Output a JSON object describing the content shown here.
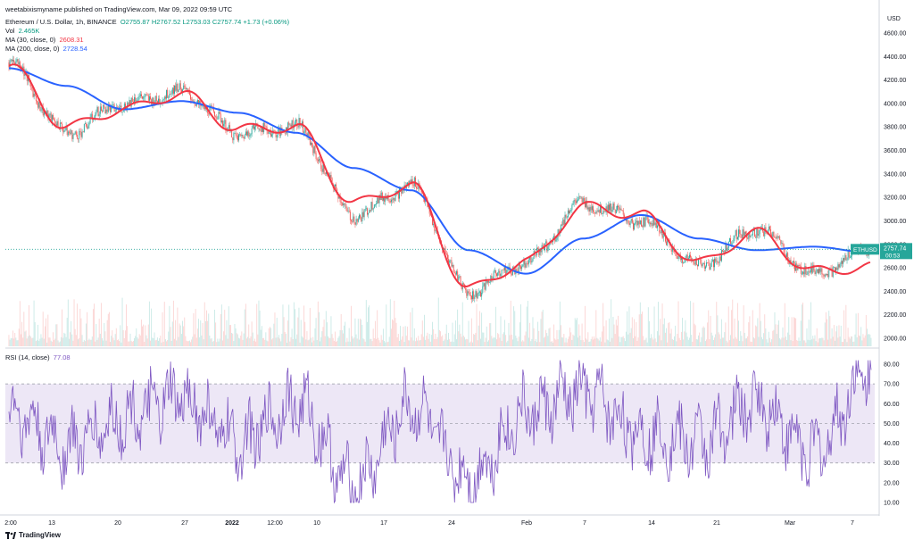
{
  "header": {
    "published_by": "weetabixismyname published on TradingView.com, Mar 09, 2022 09:59 UTC",
    "symbol": "Ethereum / U.S. Dollar, 1h, BINANCE",
    "ohlc": "O2755.87  H2767.52  L2753.03  C2757.74  +1.73 (+0.06%)",
    "vol_label": "Vol",
    "vol_value": "2.465K",
    "ma30_label": "MA (30, close, 0)",
    "ma30_value": "2608.31",
    "ma200_label": "MA (200, close, 0)",
    "ma200_value": "2728.54",
    "rsi_label": "RSI (14, close)",
    "rsi_value": "77.08"
  },
  "price_axis": {
    "currency": "USD",
    "ticks": [
      "4600.00",
      "4400.00",
      "4200.00",
      "4000.00",
      "3800.00",
      "3600.00",
      "3400.00",
      "3200.00",
      "3000.00",
      "2800.00",
      "2600.00",
      "2400.00",
      "2200.00",
      "2000.00"
    ],
    "last_symbol": "ETHUSD",
    "last_price": "2757.74",
    "countdown": "00:53"
  },
  "rsi_axis": {
    "ticks": [
      "80.00",
      "70.00",
      "60.00",
      "50.00",
      "40.00",
      "30.00",
      "20.00",
      "10.00"
    ]
  },
  "time_axis": {
    "ticks": [
      "2:00",
      "13",
      "20",
      "27",
      "2022",
      "12:00",
      "10",
      "17",
      "24",
      "Feb",
      "7",
      "14",
      "21",
      "Mar",
      "7"
    ]
  },
  "footer": {
    "brand": "TradingView"
  },
  "colors": {
    "up": "#26a69a",
    "down": "#ef5350",
    "ma30": "#f23645",
    "ma200": "#2962ff",
    "rsi": "#7e57c2",
    "rsi_band": "#ede7f6",
    "last_price": "#26a69a"
  },
  "chart_data": [
    {
      "type": "line",
      "title": "Ethereum / U.S. Dollar, 1h, BINANCE",
      "ylabel": "USD",
      "ylim": [
        2000,
        4600
      ],
      "x": [
        "2:00",
        "13",
        "20",
        "27",
        "2022",
        "12:00",
        "10",
        "17",
        "24",
        "Feb",
        "7",
        "14",
        "21",
        "Mar",
        "7",
        "Mar 9"
      ],
      "series": [
        {
          "name": "Price",
          "values": [
            4350,
            3750,
            4000,
            4100,
            3750,
            3800,
            3050,
            3300,
            2400,
            2650,
            3150,
            3000,
            2620,
            2930,
            2550,
            2757.74
          ]
        },
        {
          "name": "MA (30, close, 0)",
          "values": [
            4320,
            3800,
            3950,
            4080,
            3780,
            3800,
            3150,
            3300,
            2420,
            2650,
            3120,
            3050,
            2640,
            2900,
            2570,
            2608.31
          ]
        },
        {
          "name": "MA (200, close, 0)",
          "values": [
            4300,
            4150,
            3950,
            4020,
            3920,
            3750,
            3450,
            3260,
            2750,
            2550,
            2850,
            3050,
            2850,
            2750,
            2780,
            2728.54
          ]
        }
      ]
    },
    {
      "type": "line",
      "title": "RSI (14, close)",
      "ylim": [
        5,
        85
      ],
      "band": [
        30,
        70
      ],
      "series": [
        {
          "name": "RSI (14, close)",
          "values": [
            55,
            38,
            52,
            62,
            40,
            60,
            18,
            58,
            22,
            55,
            65,
            45,
            40,
            60,
            35,
            77.08
          ]
        }
      ]
    }
  ]
}
